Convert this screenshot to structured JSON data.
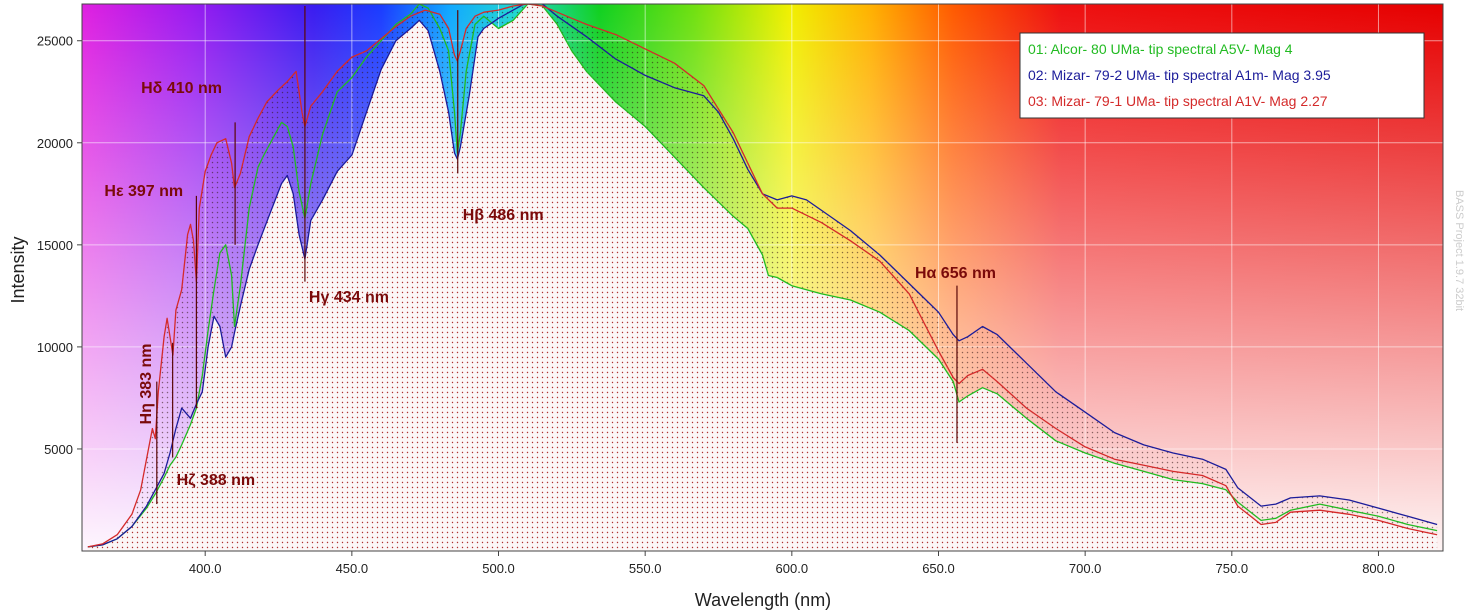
{
  "chart_data": {
    "type": "line",
    "xlabel": "Wavelength (nm)",
    "ylabel": "Intensity",
    "xlim": [
      358,
      822
    ],
    "ylim": [
      0,
      26800
    ],
    "x_ticks": [
      "400.0",
      "450.0",
      "500.0",
      "550.0",
      "600.0",
      "650.0",
      "700.0",
      "750.0",
      "800.0"
    ],
    "y_ticks": [
      "5000",
      "10000",
      "15000",
      "20000",
      "25000"
    ],
    "grid": true,
    "legend_position": "top-right",
    "background": "visible-spectrum rainbow gradient",
    "series": [
      {
        "name": "01: Alcor- 80 UMa- tip spectral A5V- Mag 4",
        "color": "#22bb22",
        "points": [
          [
            360,
            200
          ],
          [
            365,
            300
          ],
          [
            370,
            600
          ],
          [
            375,
            1200
          ],
          [
            380,
            2100
          ],
          [
            383,
            2800
          ],
          [
            386,
            3600
          ],
          [
            388,
            4200
          ],
          [
            390,
            4600
          ],
          [
            392,
            5200
          ],
          [
            395,
            6200
          ],
          [
            397,
            7000
          ],
          [
            399,
            8600
          ],
          [
            401,
            10800
          ],
          [
            403,
            12800
          ],
          [
            405,
            14600
          ],
          [
            407,
            15000
          ],
          [
            409,
            13500
          ],
          [
            410,
            11000
          ],
          [
            412,
            13000
          ],
          [
            415,
            16800
          ],
          [
            418,
            18800
          ],
          [
            420,
            19400
          ],
          [
            423,
            20200
          ],
          [
            426,
            21000
          ],
          [
            428,
            20800
          ],
          [
            430,
            19800
          ],
          [
            432,
            17600
          ],
          [
            434,
            16300
          ],
          [
            436,
            18000
          ],
          [
            440,
            20400
          ],
          [
            445,
            22500
          ],
          [
            450,
            23200
          ],
          [
            455,
            24200
          ],
          [
            460,
            25000
          ],
          [
            465,
            25800
          ],
          [
            470,
            26300
          ],
          [
            473,
            26800
          ],
          [
            476,
            26600
          ],
          [
            480,
            25600
          ],
          [
            483,
            24500
          ],
          [
            485,
            21500
          ],
          [
            486,
            19500
          ],
          [
            487,
            20500
          ],
          [
            489,
            23500
          ],
          [
            492,
            25800
          ],
          [
            495,
            26200
          ],
          [
            500,
            25600
          ],
          [
            505,
            26000
          ],
          [
            510,
            26800
          ],
          [
            515,
            26700
          ],
          [
            520,
            25800
          ],
          [
            525,
            24500
          ],
          [
            530,
            23500
          ],
          [
            540,
            22000
          ],
          [
            550,
            20800
          ],
          [
            560,
            19300
          ],
          [
            570,
            17800
          ],
          [
            580,
            16400
          ],
          [
            585,
            15800
          ],
          [
            590,
            14500
          ],
          [
            592,
            13500
          ],
          [
            595,
            13400
          ],
          [
            600,
            13000
          ],
          [
            610,
            12600
          ],
          [
            620,
            12300
          ],
          [
            630,
            11700
          ],
          [
            640,
            10800
          ],
          [
            650,
            9400
          ],
          [
            655,
            8300
          ],
          [
            657,
            7300
          ],
          [
            660,
            7600
          ],
          [
            665,
            8000
          ],
          [
            670,
            7700
          ],
          [
            680,
            6500
          ],
          [
            690,
            5400
          ],
          [
            700,
            4800
          ],
          [
            710,
            4300
          ],
          [
            720,
            3900
          ],
          [
            730,
            3500
          ],
          [
            740,
            3300
          ],
          [
            748,
            3000
          ],
          [
            752,
            2400
          ],
          [
            760,
            1500
          ],
          [
            765,
            1600
          ],
          [
            770,
            2000
          ],
          [
            780,
            2300
          ],
          [
            790,
            2000
          ],
          [
            800,
            1700
          ],
          [
            810,
            1300
          ],
          [
            820,
            1000
          ]
        ]
      },
      {
        "name": "02: Mizar- 79-2 UMa- tip spectral A1m- Mag 3.95",
        "color": "#1c1c9a",
        "points": [
          [
            360,
            200
          ],
          [
            365,
            300
          ],
          [
            370,
            600
          ],
          [
            375,
            1200
          ],
          [
            380,
            2200
          ],
          [
            383,
            3000
          ],
          [
            386,
            3800
          ],
          [
            388,
            4800
          ],
          [
            390,
            6000
          ],
          [
            392,
            7000
          ],
          [
            395,
            6500
          ],
          [
            397,
            7200
          ],
          [
            399,
            7800
          ],
          [
            401,
            10000
          ],
          [
            403,
            11500
          ],
          [
            405,
            11000
          ],
          [
            407,
            9500
          ],
          [
            409,
            10000
          ],
          [
            410,
            10700
          ],
          [
            412,
            12000
          ],
          [
            415,
            13800
          ],
          [
            418,
            15000
          ],
          [
            422,
            16500
          ],
          [
            426,
            18000
          ],
          [
            428,
            18400
          ],
          [
            430,
            17500
          ],
          [
            432,
            15500
          ],
          [
            434,
            14300
          ],
          [
            436,
            16200
          ],
          [
            440,
            17200
          ],
          [
            445,
            18600
          ],
          [
            450,
            19400
          ],
          [
            455,
            21500
          ],
          [
            460,
            23600
          ],
          [
            465,
            25000
          ],
          [
            470,
            25600
          ],
          [
            473,
            26000
          ],
          [
            476,
            25500
          ],
          [
            480,
            23500
          ],
          [
            483,
            21500
          ],
          [
            485,
            19500
          ],
          [
            486,
            19200
          ],
          [
            487,
            19800
          ],
          [
            490,
            22300
          ],
          [
            493,
            25200
          ],
          [
            495,
            25600
          ],
          [
            500,
            26100
          ],
          [
            505,
            26500
          ],
          [
            510,
            26900
          ],
          [
            515,
            26800
          ],
          [
            520,
            26200
          ],
          [
            530,
            25200
          ],
          [
            540,
            24100
          ],
          [
            550,
            23300
          ],
          [
            560,
            22700
          ],
          [
            570,
            22300
          ],
          [
            575,
            21500
          ],
          [
            580,
            20200
          ],
          [
            585,
            18700
          ],
          [
            590,
            17500
          ],
          [
            595,
            17200
          ],
          [
            600,
            17400
          ],
          [
            605,
            17200
          ],
          [
            610,
            16700
          ],
          [
            620,
            15700
          ],
          [
            630,
            14500
          ],
          [
            640,
            13100
          ],
          [
            645,
            12400
          ],
          [
            650,
            11700
          ],
          [
            655,
            10600
          ],
          [
            657,
            10300
          ],
          [
            660,
            10500
          ],
          [
            665,
            11000
          ],
          [
            670,
            10600
          ],
          [
            680,
            9200
          ],
          [
            690,
            7800
          ],
          [
            700,
            6800
          ],
          [
            710,
            5800
          ],
          [
            720,
            5200
          ],
          [
            730,
            4800
          ],
          [
            740,
            4500
          ],
          [
            748,
            4000
          ],
          [
            752,
            3100
          ],
          [
            760,
            2200
          ],
          [
            765,
            2300
          ],
          [
            770,
            2600
          ],
          [
            780,
            2700
          ],
          [
            790,
            2500
          ],
          [
            800,
            2100
          ],
          [
            810,
            1700
          ],
          [
            820,
            1300
          ]
        ]
      },
      {
        "name": "03: Mizar- 79-1 UMa- tip spectral A1V- Mag 2.27",
        "color": "#d42a2a",
        "points": [
          [
            360,
            200
          ],
          [
            365,
            350
          ],
          [
            370,
            800
          ],
          [
            375,
            1800
          ],
          [
            378,
            3000
          ],
          [
            380,
            4500
          ],
          [
            382,
            6000
          ],
          [
            383,
            5500
          ],
          [
            384,
            7800
          ],
          [
            386,
            10500
          ],
          [
            387,
            11400
          ],
          [
            388,
            10500
          ],
          [
            389,
            9600
          ],
          [
            390,
            11800
          ],
          [
            392,
            12800
          ],
          [
            394,
            15500
          ],
          [
            395,
            16000
          ],
          [
            396,
            15200
          ],
          [
            397,
            13200
          ],
          [
            398,
            16800
          ],
          [
            400,
            18600
          ],
          [
            402,
            19400
          ],
          [
            404,
            20000
          ],
          [
            407,
            20200
          ],
          [
            409,
            19000
          ],
          [
            410,
            17800
          ],
          [
            412,
            18500
          ],
          [
            415,
            20300
          ],
          [
            418,
            21200
          ],
          [
            421,
            22000
          ],
          [
            425,
            22600
          ],
          [
            428,
            23000
          ],
          [
            431,
            23500
          ],
          [
            433,
            21500
          ],
          [
            434,
            20800
          ],
          [
            436,
            21800
          ],
          [
            440,
            22500
          ],
          [
            445,
            23500
          ],
          [
            450,
            24200
          ],
          [
            455,
            24500
          ],
          [
            460,
            25100
          ],
          [
            465,
            25700
          ],
          [
            470,
            26200
          ],
          [
            475,
            26500
          ],
          [
            480,
            26300
          ],
          [
            483,
            25600
          ],
          [
            485,
            24300
          ],
          [
            486,
            24000
          ],
          [
            487,
            24500
          ],
          [
            489,
            25600
          ],
          [
            492,
            26200
          ],
          [
            495,
            26400
          ],
          [
            500,
            26500
          ],
          [
            505,
            26700
          ],
          [
            510,
            26800
          ],
          [
            515,
            26700
          ],
          [
            520,
            26400
          ],
          [
            525,
            26100
          ],
          [
            530,
            25800
          ],
          [
            540,
            25300
          ],
          [
            550,
            24600
          ],
          [
            560,
            23900
          ],
          [
            570,
            22800
          ],
          [
            580,
            20500
          ],
          [
            585,
            19000
          ],
          [
            590,
            17500
          ],
          [
            595,
            16800
          ],
          [
            600,
            16800
          ],
          [
            610,
            16100
          ],
          [
            620,
            15200
          ],
          [
            630,
            14200
          ],
          [
            640,
            12600
          ],
          [
            645,
            11200
          ],
          [
            650,
            9800
          ],
          [
            655,
            8500
          ],
          [
            657,
            8200
          ],
          [
            660,
            8600
          ],
          [
            665,
            8900
          ],
          [
            670,
            8300
          ],
          [
            680,
            7000
          ],
          [
            690,
            6000
          ],
          [
            700,
            5100
          ],
          [
            710,
            4500
          ],
          [
            720,
            4200
          ],
          [
            730,
            3900
          ],
          [
            740,
            3700
          ],
          [
            748,
            3200
          ],
          [
            752,
            2200
          ],
          [
            760,
            1300
          ],
          [
            765,
            1400
          ],
          [
            770,
            1900
          ],
          [
            780,
            2000
          ],
          [
            790,
            1800
          ],
          [
            800,
            1500
          ],
          [
            810,
            1100
          ],
          [
            820,
            800
          ]
        ]
      }
    ],
    "annotations": [
      {
        "label": "Hα 656 nm",
        "x": 656.3,
        "y1": 5300,
        "y2": 13000
      },
      {
        "label": "Hβ 486 nm",
        "x": 486.1,
        "y1": 18500,
        "y2": 26500
      },
      {
        "label": "Hγ 434 nm",
        "x": 434.0,
        "y1": 13200,
        "y2": 26700
      },
      {
        "label": "Hδ 410 nm",
        "x": 410.2,
        "y1": 15000,
        "y2": 21000
      },
      {
        "label": "Hε 397 nm",
        "x": 397.0,
        "y1": 7000,
        "y2": 17400
      },
      {
        "label": "Hζ 388 nm",
        "x": 388.9,
        "y1": 4600,
        "y2": 10200
      },
      {
        "label": "Hη 383 nm",
        "x": 383.5,
        "y1": 2300,
        "y2": 8300
      }
    ]
  },
  "watermark": "BASS Project 1.9.7 32bit"
}
